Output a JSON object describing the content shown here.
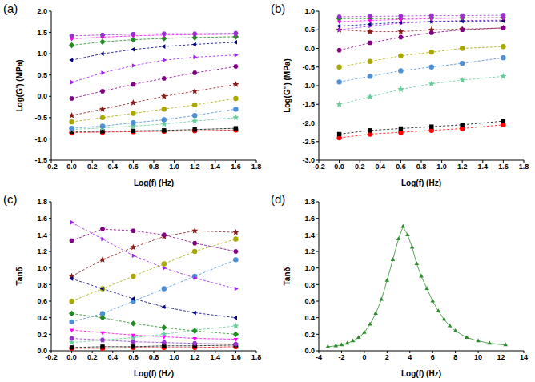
{
  "chart_data": [
    {
      "type": "line",
      "title": "(a)",
      "x_label": "Log(f) (Hz)",
      "y_label": "Log(G') (MPa)",
      "x": [
        0,
        0.3,
        0.6,
        0.9,
        1.2,
        1.6
      ],
      "xlim": [
        -0.2,
        1.8
      ],
      "xticks": [
        -0.2,
        {
          "value": 0,
          "label": "0.0"
        },
        0.2,
        0.4,
        0.6,
        0.8,
        {
          "value": 1,
          "label": "1.0"
        },
        1.2,
        1.4,
        1.6,
        1.8
      ],
      "ylim": [
        -1.5,
        2
      ],
      "yticks": [
        -1.5,
        {
          "value": -1,
          "label": "-1.0"
        },
        -0.5,
        {
          "value": 0,
          "label": "0.0"
        },
        0.5,
        {
          "value": 1,
          "label": "1.0"
        },
        1.5,
        {
          "value": 2,
          "label": "2.0"
        }
      ],
      "grid": false,
      "series": [
        {
          "color": "#ff0000",
          "marker": "circle",
          "line_style": "dashed",
          "values": [
            -0.85,
            -0.84,
            -0.83,
            -0.82,
            -0.81,
            -0.79
          ]
        },
        {
          "color": "#000000",
          "marker": "square",
          "line_style": "dashed",
          "values": [
            -0.83,
            -0.82,
            -0.81,
            -0.8,
            -0.78,
            -0.75
          ]
        },
        {
          "color": "#66cc99",
          "marker": "star",
          "line_style": "dashed",
          "values": [
            -0.78,
            -0.74,
            -0.7,
            -0.65,
            -0.58,
            -0.5
          ]
        },
        {
          "color": "#4f8fd6",
          "marker": "circle",
          "line_style": "dashed",
          "values": [
            -0.75,
            -0.7,
            -0.62,
            -0.55,
            -0.45,
            -0.3
          ]
        },
        {
          "color": "#a8a800",
          "marker": "circle",
          "line_style": "dashed",
          "values": [
            -0.6,
            -0.5,
            -0.4,
            -0.3,
            -0.2,
            -0.05
          ]
        },
        {
          "color": "#8b1a1a",
          "marker": "star",
          "line_style": "dashed",
          "values": [
            -0.45,
            -0.3,
            -0.15,
            0,
            0.12,
            0.28
          ]
        },
        {
          "color": "#800080",
          "marker": "hexagon",
          "line_style": "dashed",
          "values": [
            -0.05,
            0.12,
            0.28,
            0.42,
            0.55,
            0.7
          ]
        },
        {
          "color": "#a020f0",
          "marker": "triangle-right",
          "line_style": "dashed",
          "values": [
            0.33,
            0.55,
            0.72,
            0.85,
            0.92,
            0.97
          ]
        },
        {
          "color": "#000080",
          "marker": "triangle-left",
          "line_style": "dashed",
          "values": [
            0.85,
            1,
            1.1,
            1.17,
            1.22,
            1.27
          ]
        },
        {
          "color": "#228b22",
          "marker": "diamond",
          "line_style": "dashed",
          "values": [
            1.2,
            1.28,
            1.33,
            1.36,
            1.38,
            1.4
          ]
        },
        {
          "color": "#ff00ff",
          "marker": "triangle-down",
          "line_style": "dashed",
          "values": [
            1.35,
            1.39,
            1.42,
            1.44,
            1.45,
            1.46
          ]
        },
        {
          "color": "#9932cc",
          "marker": "hexagon",
          "line_style": "dashed",
          "values": [
            1.42,
            1.44,
            1.46,
            1.47,
            1.47,
            1.48
          ]
        }
      ]
    },
    {
      "type": "line",
      "title": "(b)",
      "x_label": "Log(f) (Hz)",
      "y_label": "Log(G'') (MPa)",
      "x": [
        0,
        0.3,
        0.6,
        0.9,
        1.2,
        1.6
      ],
      "xlim": [
        -0.2,
        1.8
      ],
      "xticks": [
        -0.2,
        {
          "value": 0,
          "label": "0.0"
        },
        0.2,
        0.4,
        0.6,
        0.8,
        {
          "value": 1,
          "label": "1.0"
        },
        1.2,
        1.4,
        1.6,
        1.8
      ],
      "ylim": [
        -3,
        1
      ],
      "yticks": [
        {
          "value": -3,
          "label": "-3.0"
        },
        -2.5,
        {
          "value": -2,
          "label": "-2.0"
        },
        -1.5,
        {
          "value": -1,
          "label": "-1.0"
        },
        -0.5,
        {
          "value": 0,
          "label": "0.0"
        },
        0.5,
        {
          "value": 1,
          "label": "1.0"
        }
      ],
      "grid": false,
      "series": [
        {
          "color": "#ff0000",
          "marker": "circle",
          "line_style": "dashed",
          "values": [
            -2.4,
            -2.3,
            -2.25,
            -2.2,
            -2.15,
            -2.05
          ]
        },
        {
          "color": "#000000",
          "marker": "square",
          "line_style": "dashed",
          "values": [
            -2.3,
            -2.2,
            -2.15,
            -2.1,
            -2.05,
            -1.95
          ]
        },
        {
          "color": "#66cc99",
          "marker": "star",
          "line_style": "dashed",
          "values": [
            -1.5,
            -1.3,
            -1.1,
            -0.95,
            -0.85,
            -0.75
          ]
        },
        {
          "color": "#4f8fd6",
          "marker": "circle",
          "line_style": "dashed",
          "values": [
            -0.9,
            -0.75,
            -0.6,
            -0.5,
            -0.4,
            -0.25
          ]
        },
        {
          "color": "#a8a800",
          "marker": "circle",
          "line_style": "dashed",
          "values": [
            -0.5,
            -0.35,
            -0.2,
            -0.1,
            0,
            0.05
          ]
        },
        {
          "color": "#8b1a1a",
          "marker": "star",
          "line_style": "dashed",
          "values": [
            0.5,
            0.45,
            0.45,
            0.5,
            0.52,
            0.55
          ]
        },
        {
          "color": "#800080",
          "marker": "hexagon",
          "line_style": "dashed",
          "values": [
            -0.05,
            0.15,
            0.3,
            0.42,
            0.5,
            0.55
          ]
        },
        {
          "color": "#a020f0",
          "marker": "triangle-right",
          "line_style": "dashed",
          "values": [
            0.5,
            0.6,
            0.68,
            0.72,
            0.75,
            0.76
          ]
        },
        {
          "color": "#000080",
          "marker": "triangle-left",
          "line_style": "dashed",
          "values": [
            0.6,
            0.65,
            0.7,
            0.72,
            0.73,
            0.74
          ]
        },
        {
          "color": "#228b22",
          "marker": "diamond",
          "line_style": "dashed",
          "values": [
            0.8,
            0.8,
            0.8,
            0.82,
            0.82,
            0.83
          ]
        },
        {
          "color": "#ff00ff",
          "marker": "triangle-down",
          "line_style": "dashed",
          "values": [
            0.72,
            0.75,
            0.78,
            0.8,
            0.82,
            0.82
          ]
        },
        {
          "color": "#9932cc",
          "marker": "hexagon",
          "line_style": "dashed",
          "values": [
            0.85,
            0.86,
            0.87,
            0.88,
            0.88,
            0.89
          ]
        }
      ]
    },
    {
      "type": "line",
      "title": "(c)",
      "x_label": "Log(f) (Hz)",
      "y_label": "Tanδ",
      "x": [
        0,
        0.3,
        0.6,
        0.9,
        1.2,
        1.6
      ],
      "xlim": [
        -0.2,
        1.8
      ],
      "xticks": [
        -0.2,
        {
          "value": 0,
          "label": "0.0"
        },
        0.2,
        0.4,
        0.6,
        0.8,
        {
          "value": 1,
          "label": "1.0"
        },
        1.2,
        1.4,
        1.6,
        1.8
      ],
      "ylim": [
        0,
        1.8
      ],
      "yticks": [
        {
          "value": 0,
          "label": "0.0"
        },
        0.2,
        0.4,
        0.6,
        0.8,
        {
          "value": 1,
          "label": "1.0"
        },
        1.2,
        1.4,
        1.6,
        1.8
      ],
      "grid": false,
      "series": [
        {
          "color": "#ff0000",
          "marker": "circle",
          "line_style": "dashed",
          "values": [
            0.03,
            0.03,
            0.04,
            0.04,
            0.04,
            0.05
          ]
        },
        {
          "color": "#000000",
          "marker": "square",
          "line_style": "dashed",
          "values": [
            0.04,
            0.05,
            0.05,
            0.06,
            0.06,
            0.07
          ]
        },
        {
          "color": "#66cc99",
          "marker": "star",
          "line_style": "dashed",
          "values": [
            0.1,
            0.13,
            0.16,
            0.2,
            0.25,
            0.3
          ]
        },
        {
          "color": "#4f8fd6",
          "marker": "circle",
          "line_style": "dashed",
          "values": [
            0.35,
            0.45,
            0.6,
            0.75,
            0.9,
            1.1
          ]
        },
        {
          "color": "#a8a800",
          "marker": "circle",
          "line_style": "dashed",
          "values": [
            0.6,
            0.75,
            0.9,
            1.05,
            1.2,
            1.35
          ]
        },
        {
          "color": "#8b1a1a",
          "marker": "star",
          "line_style": "dashed",
          "values": [
            0.9,
            1.1,
            1.25,
            1.38,
            1.45,
            1.43
          ]
        },
        {
          "color": "#800080",
          "marker": "hexagon",
          "line_style": "dashed",
          "values": [
            1.33,
            1.47,
            1.45,
            1.4,
            1.3,
            1.2
          ]
        },
        {
          "color": "#a020f0",
          "marker": "triangle-right",
          "line_style": "dashed",
          "values": [
            1.55,
            1.35,
            1.15,
            1,
            0.88,
            0.75
          ]
        },
        {
          "color": "#000080",
          "marker": "triangle-left",
          "line_style": "dashed",
          "values": [
            0.87,
            0.75,
            0.63,
            0.53,
            0.46,
            0.4
          ]
        },
        {
          "color": "#228b22",
          "marker": "diamond",
          "line_style": "dashed",
          "values": [
            0.45,
            0.4,
            0.33,
            0.28,
            0.24,
            0.2
          ]
        },
        {
          "color": "#ff00ff",
          "marker": "triangle-down",
          "line_style": "dashed",
          "values": [
            0.25,
            0.22,
            0.19,
            0.17,
            0.15,
            0.14
          ]
        },
        {
          "color": "#9932cc",
          "marker": "hexagon",
          "line_style": "dashed",
          "values": [
            0.15,
            0.13,
            0.11,
            0.1,
            0.09,
            0.08
          ]
        }
      ]
    },
    {
      "type": "line",
      "title": "(d)",
      "x_label": "Log(f) (Hz)",
      "y_label": "Tanδ",
      "x": [
        -3.2,
        -2.5,
        -2,
        -1.5,
        -1,
        -0.5,
        0,
        0.5,
        1,
        1.5,
        2,
        2.5,
        3,
        3.4,
        3.8,
        4.2,
        4.6,
        5,
        5.5,
        6,
        6.5,
        7,
        7.5,
        8,
        9,
        10,
        11,
        12.4
      ],
      "xlim": [
        -4,
        14
      ],
      "xticks": [
        -4,
        -2,
        0,
        2,
        4,
        6,
        8,
        10,
        12,
        14
      ],
      "ylim": [
        0,
        1.8
      ],
      "yticks": [
        {
          "value": 0,
          "label": "0.0"
        },
        0.2,
        0.4,
        0.6,
        0.8,
        {
          "value": 1,
          "label": "1.0"
        },
        1.2,
        1.4,
        1.6,
        1.8
      ],
      "grid": false,
      "series": [
        {
          "color": "#2e8b2e",
          "marker": "triangle",
          "line_style": "solid",
          "values": [
            0.05,
            0.06,
            0.07,
            0.09,
            0.12,
            0.16,
            0.22,
            0.32,
            0.45,
            0.62,
            0.85,
            1.1,
            1.35,
            1.5,
            1.4,
            1.25,
            1.05,
            0.9,
            0.75,
            0.6,
            0.48,
            0.38,
            0.3,
            0.24,
            0.16,
            0.12,
            0.09,
            0.07
          ]
        }
      ]
    }
  ]
}
